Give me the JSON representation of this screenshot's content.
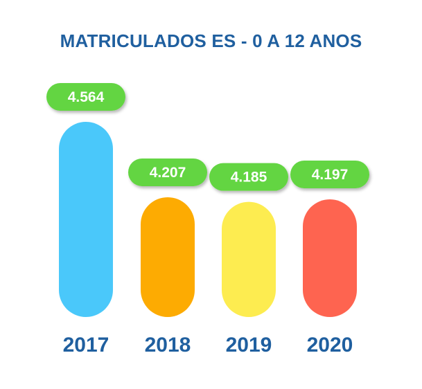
{
  "chart_data": {
    "type": "bar",
    "title": "MATRICULADOS ES - 0 A 12 ANOS",
    "categories": [
      "2017",
      "2018",
      "2019",
      "2020"
    ],
    "values": [
      4564,
      4207,
      4185,
      4197
    ],
    "value_labels": [
      "4.564",
      "4.207",
      "4.185",
      "4.197"
    ],
    "bar_colors": [
      "#4ac8fa",
      "#fdab02",
      "#fdec50",
      "#fe6450"
    ],
    "label_badge_color": "#63d542",
    "text_color": "#1f5f9f",
    "grid": false,
    "legend": "none"
  }
}
